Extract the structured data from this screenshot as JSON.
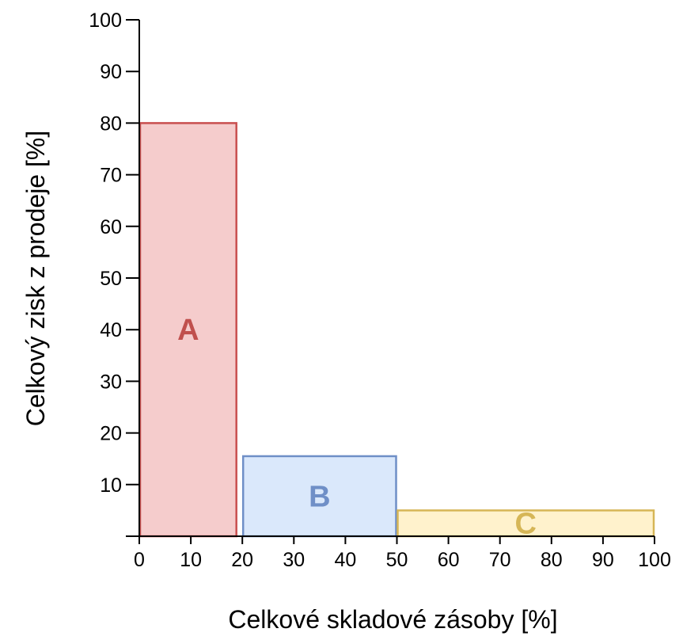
{
  "chart_data": {
    "type": "bar",
    "title": "",
    "xlabel": "Celkové skladové zásoby [%]",
    "ylabel": "Celkový zisk z prodeje [%]",
    "xlim": [
      0,
      100
    ],
    "ylim": [
      0,
      100
    ],
    "x_ticks": [
      "0",
      "10",
      "20",
      "30",
      "40",
      "50",
      "60",
      "70",
      "80",
      "90",
      "100"
    ],
    "y_ticks": [
      "10",
      "20",
      "30",
      "40",
      "50",
      "60",
      "70",
      "80",
      "90",
      "100"
    ],
    "grid": false,
    "bars": [
      {
        "label": "A",
        "x_start": 0,
        "x_end": 19,
        "value": 80,
        "fill": "#f5cccc",
        "stroke": "#c94f4f",
        "label_color": "#c0504d"
      },
      {
        "label": "B",
        "x_start": 20,
        "x_end": 50,
        "value": 15.5,
        "fill": "#dae8fb",
        "stroke": "#6f8fc7",
        "label_color": "#6f8fc7"
      },
      {
        "label": "C",
        "x_start": 50,
        "x_end": 100,
        "value": 5,
        "fill": "#fff2cc",
        "stroke": "#d6b656",
        "label_color": "#d6b656"
      }
    ]
  }
}
